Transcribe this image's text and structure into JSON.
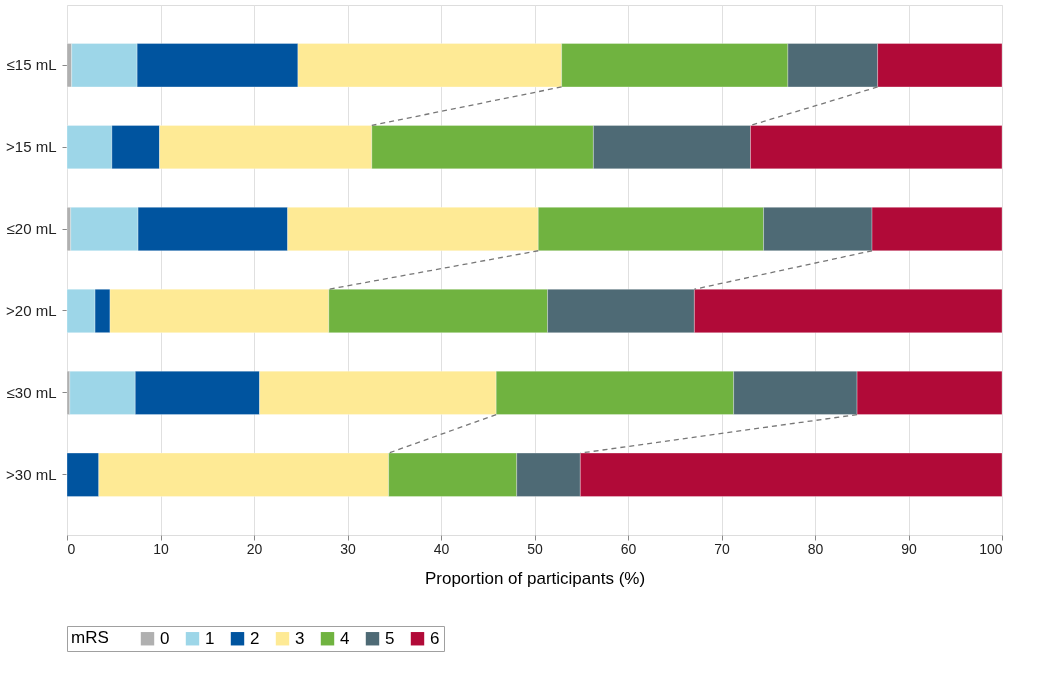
{
  "chart_data": {
    "type": "bar",
    "orientation": "horizontal",
    "stacked": true,
    "categories": [
      "≤15 mL",
      ">15 mL",
      "≤20 mL",
      ">20 mL",
      "≤30 mL",
      ">30 mL"
    ],
    "series": [
      {
        "name": "0",
        "color": "#b0b0b0",
        "values": [
          0.5,
          0,
          0.4,
          0,
          0.3,
          0
        ]
      },
      {
        "name": "1",
        "color": "#9dd6e8",
        "values": [
          7.0,
          4.8,
          7.2,
          3.0,
          7.0,
          0
        ]
      },
      {
        "name": "2",
        "color": "#00549f",
        "values": [
          17.2,
          5.1,
          16.0,
          1.6,
          13.3,
          3.4
        ]
      },
      {
        "name": "3",
        "color": "#feea95",
        "values": [
          28.2,
          22.7,
          26.8,
          23.4,
          25.3,
          31.0
        ]
      },
      {
        "name": "4",
        "color": "#70b340",
        "values": [
          24.2,
          23.7,
          24.1,
          23.4,
          25.4,
          13.7
        ]
      },
      {
        "name": "5",
        "color": "#4e6a75",
        "values": [
          9.6,
          16.8,
          11.6,
          15.7,
          13.2,
          6.8
        ]
      },
      {
        "name": "6",
        "color": "#b10a38",
        "values": [
          13.3,
          26.9,
          13.9,
          32.9,
          15.5,
          45.1
        ]
      }
    ],
    "xlabel": "Proportion of participants (%)",
    "legend_title": "mRS",
    "legend": "bottom",
    "xlim": [
      0,
      100
    ],
    "xticks": [
      0,
      10,
      20,
      30,
      40,
      50,
      60,
      70,
      80,
      90,
      100
    ],
    "grid": "x"
  }
}
